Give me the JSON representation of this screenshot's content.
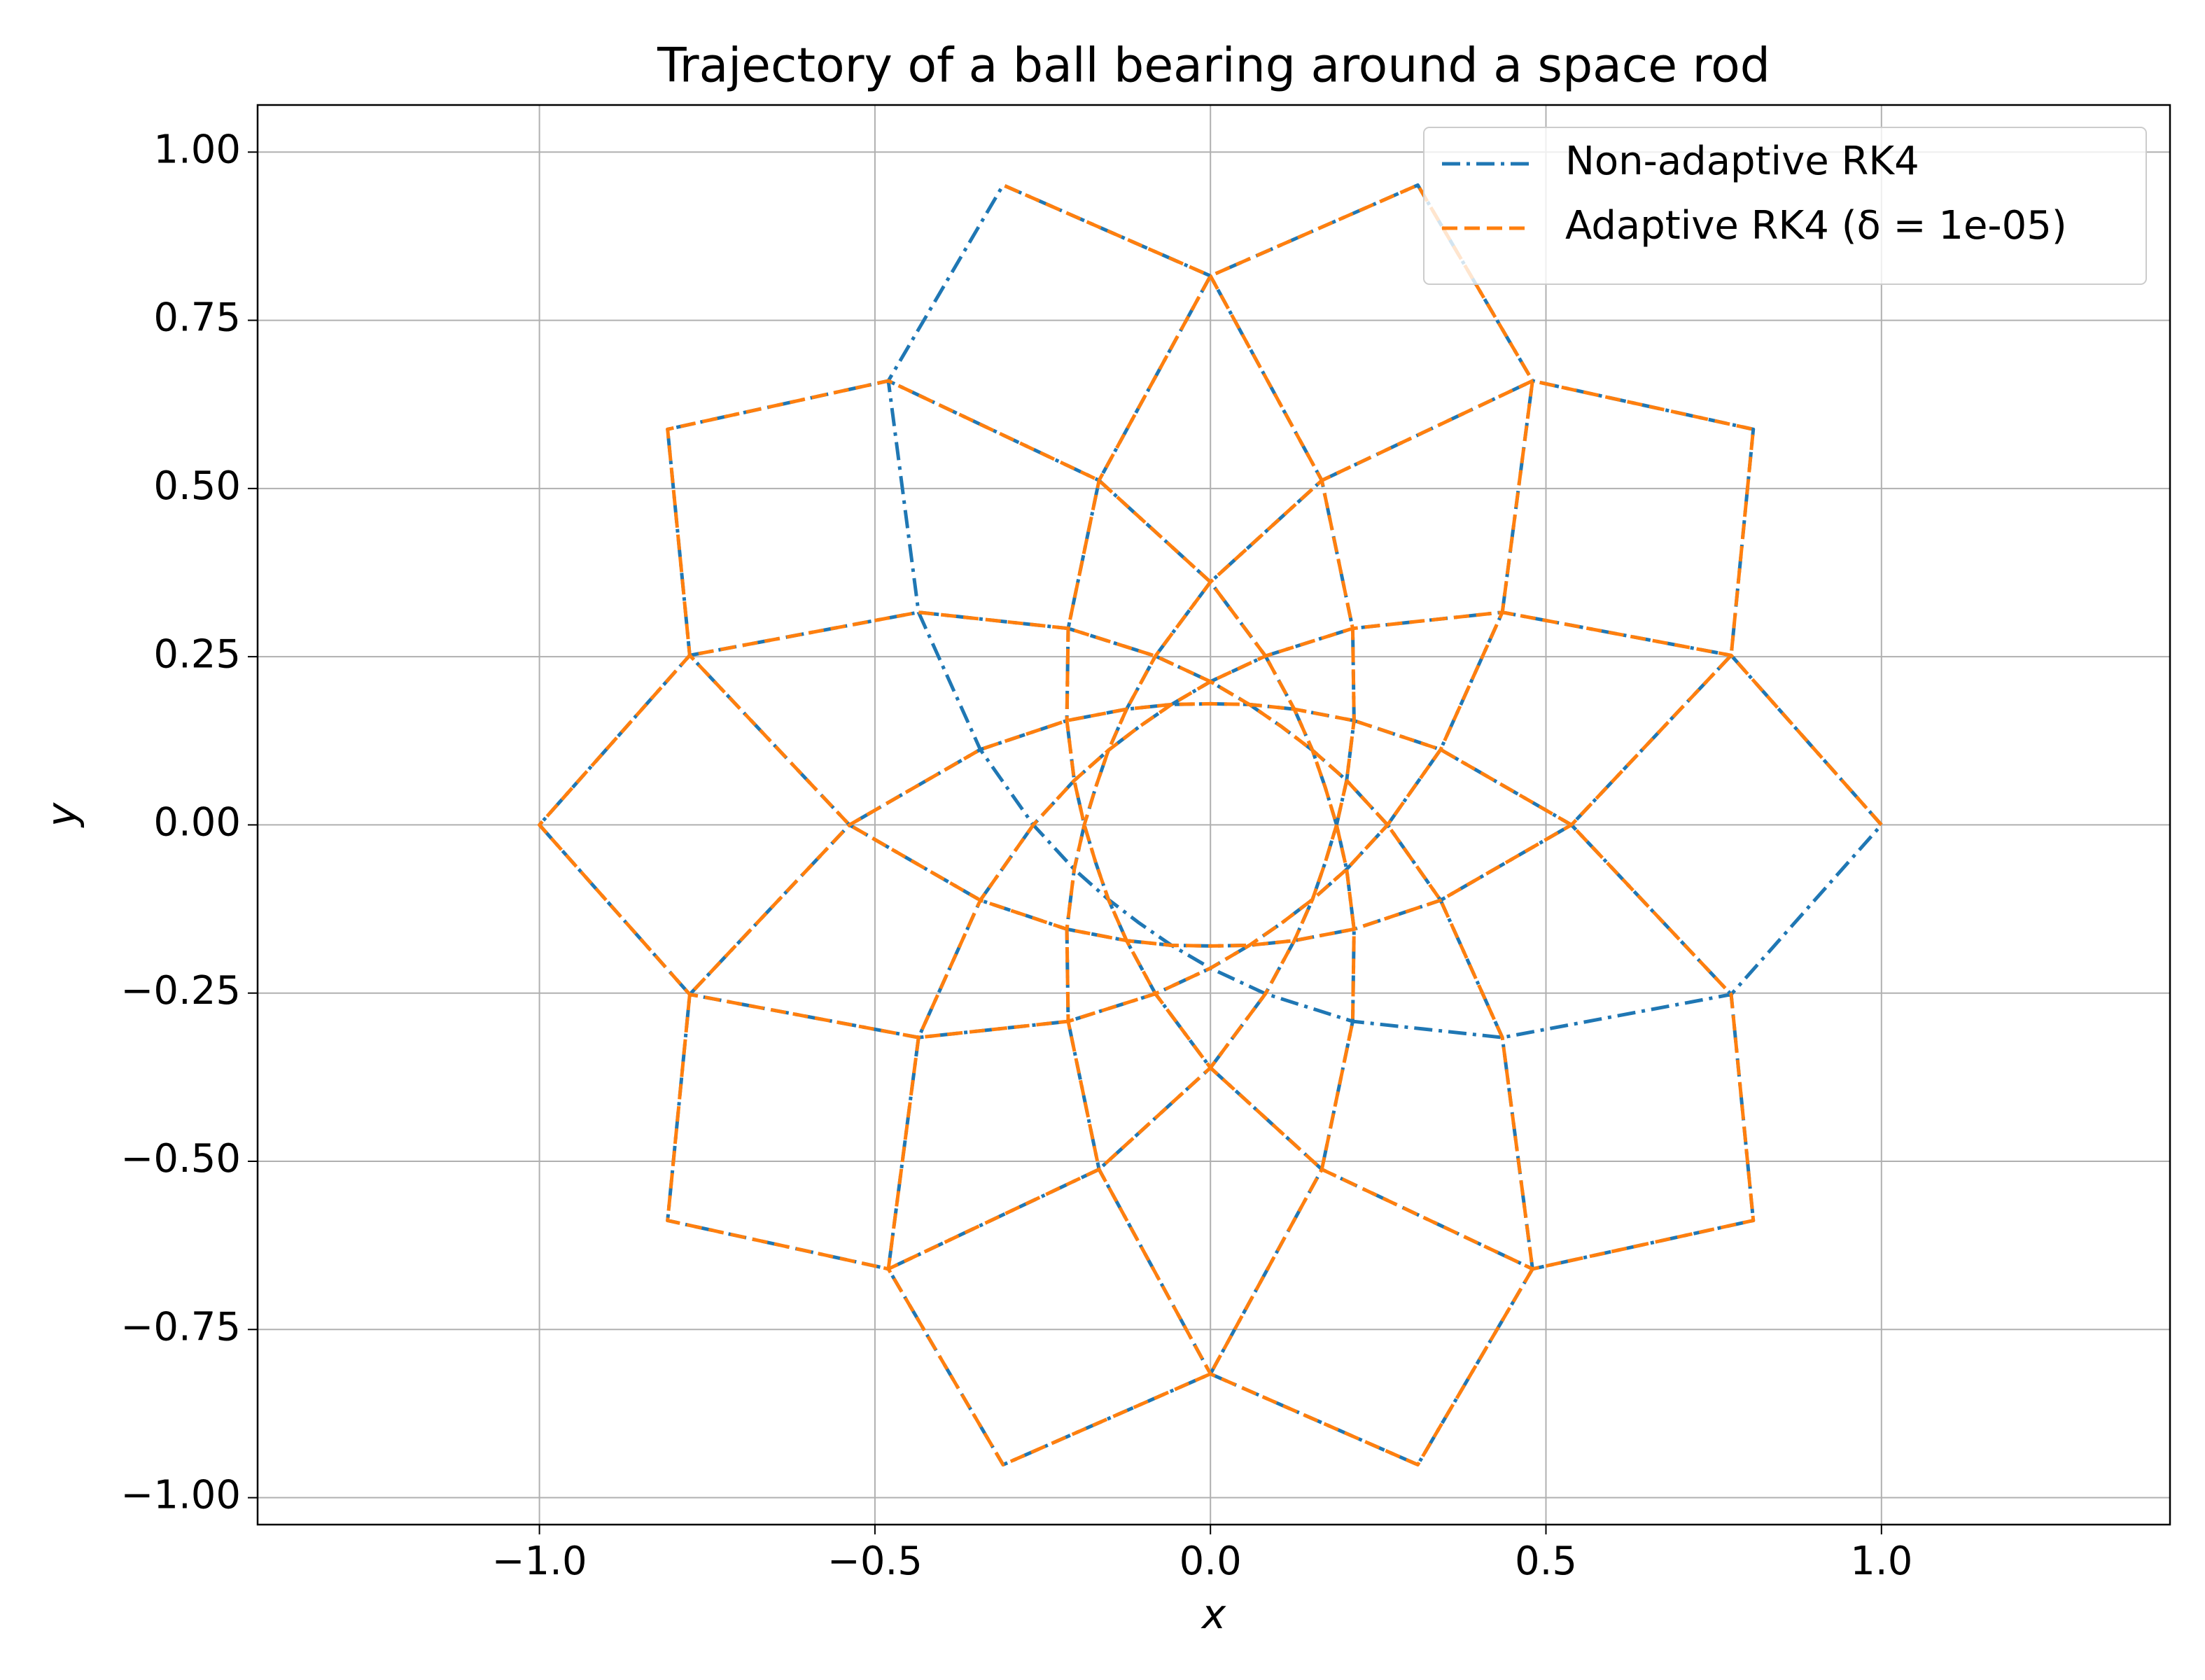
{
  "chart_data": {
    "type": "line",
    "title": "Trajectory of a ball bearing around a space rod",
    "xlabel": "x",
    "ylabel": "y",
    "xlim": [
      -1.42,
      1.43
    ],
    "ylim": [
      -1.04,
      1.07
    ],
    "xticks": [
      {
        "value": -1.0,
        "label": "−1.0"
      },
      {
        "value": -0.5,
        "label": "−0.5"
      },
      {
        "value": 0.0,
        "label": "0.0"
      },
      0.5,
      {
        "value": 1.0,
        "label": "1.0"
      }
    ],
    "yticks": [
      {
        "value": -1.0,
        "label": "−1.00"
      },
      {
        "value": -0.75,
        "label": "−0.75"
      },
      {
        "value": -0.5,
        "label": "−0.50"
      },
      {
        "value": -0.25,
        "label": "−0.25"
      },
      {
        "value": 0.0,
        "label": "0.00"
      },
      0.25,
      {
        "value": 0.5,
        "label": "0.50"
      },
      0.75,
      {
        "value": 1.0,
        "label": "1.00"
      }
    ],
    "grid": true,
    "legend_loc": "upper right",
    "series": [
      {
        "name": "Non-adaptive RK4",
        "color": "#1f77b4",
        "linestyle": "dashdot",
        "x": [
          1,
          0.776,
          0.435,
          0.212,
          0.082,
          0,
          -0.058,
          -0.106,
          -0.152,
          -0.203,
          -0.264,
          -0.343,
          -0.435,
          -0.48,
          -0.309,
          0,
          0.166,
          0.212,
          0.214,
          0.203,
          0.188,
          0.171,
          0.152,
          0.125,
          0.082,
          0,
          -0.166,
          -0.48,
          -0.809,
          -0.776,
          -0.538,
          -0.343,
          -0.214,
          -0.125,
          -0.058,
          0,
          0.058,
          0.125,
          0.214,
          0.343,
          0.538,
          0.776,
          0.809,
          0.48,
          0.166,
          0,
          -0.082,
          -0.125,
          -0.152,
          -0.171,
          -0.188,
          -0.203,
          -0.214,
          -0.212,
          -0.166,
          0,
          0.309,
          0.48,
          0.435,
          0.343,
          0.264,
          0.203,
          0.152,
          0.106,
          0.058,
          0,
          -0.082,
          -0.212,
          -0.435,
          -0.776,
          -1,
          -0.776,
          -0.435,
          -0.212,
          -0.082,
          0,
          0.058,
          0.106,
          0.152,
          0.203,
          0.264,
          0.343,
          0.435,
          0.48,
          0.309,
          0,
          -0.166,
          -0.212,
          -0.214,
          -0.203,
          -0.188,
          -0.171,
          -0.152,
          -0.125,
          -0.082,
          0,
          0.166,
          0.48,
          0.809,
          0.776,
          0.538,
          0.343,
          0.214,
          0.125,
          0.058,
          0,
          -0.058,
          -0.125,
          -0.214,
          -0.343,
          -0.538,
          -0.776,
          -0.809,
          -0.48,
          -0.166,
          0,
          0.082,
          0.125,
          0.152,
          0.171,
          0.188,
          0.203,
          0.214,
          0.212,
          0.166,
          0,
          -0.309,
          -0.48,
          -0.435,
          -0.343,
          -0.264,
          -0.203,
          -0.152,
          -0.106,
          -0.058,
          0,
          0.082,
          0.212,
          0.435,
          0.776,
          1
        ],
        "values": [
          0,
          0.252,
          0.316,
          0.292,
          0.251,
          0.213,
          0.179,
          0.146,
          0.111,
          0.066,
          0,
          -0.112,
          -0.316,
          -0.66,
          -0.951,
          -0.816,
          -0.512,
          -0.292,
          -0.155,
          -0.066,
          0,
          0.056,
          0.111,
          0.172,
          0.251,
          0.361,
          0.512,
          0.66,
          0.588,
          0.252,
          0,
          -0.112,
          -0.155,
          -0.172,
          -0.179,
          -0.18,
          -0.179,
          -0.172,
          -0.155,
          -0.112,
          0,
          0.252,
          0.588,
          0.66,
          0.512,
          0.361,
          0.251,
          0.172,
          0.111,
          0.056,
          0,
          -0.066,
          -0.155,
          -0.292,
          -0.512,
          -0.816,
          -0.951,
          -0.66,
          -0.316,
          -0.112,
          0,
          0.066,
          0.111,
          0.146,
          0.179,
          0.213,
          0.251,
          0.292,
          0.316,
          0.252,
          0,
          -0.252,
          -0.316,
          -0.292,
          -0.251,
          -0.213,
          -0.179,
          -0.146,
          -0.111,
          -0.066,
          0,
          0.112,
          0.316,
          0.66,
          0.951,
          0.816,
          0.512,
          0.292,
          0.155,
          0.066,
          0,
          -0.056,
          -0.111,
          -0.172,
          -0.251,
          -0.361,
          -0.512,
          -0.66,
          -0.588,
          -0.252,
          0,
          0.112,
          0.155,
          0.172,
          0.179,
          0.18,
          0.179,
          0.172,
          0.155,
          0.112,
          0,
          -0.252,
          -0.588,
          -0.66,
          -0.512,
          -0.361,
          -0.251,
          -0.172,
          -0.111,
          -0.056,
          0,
          0.066,
          0.155,
          0.292,
          0.512,
          0.816,
          0.951,
          0.66,
          0.316,
          0.112,
          0,
          -0.066,
          -0.111,
          -0.146,
          -0.179,
          -0.213,
          -0.251,
          -0.292,
          -0.316,
          -0.252,
          0
        ]
      },
      {
        "name": "Adaptive RK4 (δ =  1e-05)",
        "color": "#ff7f0e",
        "linestyle": "dashed",
        "x": [
          1,
          0.776,
          0.435,
          0.212,
          0.082,
          0,
          -0.058,
          -0.106,
          -0.152,
          -0.203,
          -0.264,
          -0.343,
          -0.435,
          -0.48,
          -0.309,
          0,
          0.166,
          0.212,
          0.214,
          0.203,
          0.188,
          0.171,
          0.152,
          0.125,
          0.082,
          0,
          -0.166,
          -0.48,
          -0.809,
          -0.776,
          -0.538,
          -0.343,
          -0.214,
          -0.125,
          -0.058,
          0,
          0.058,
          0.125,
          0.214,
          0.343,
          0.538,
          0.776,
          0.809,
          0.48,
          0.166,
          0,
          -0.082,
          -0.125,
          -0.152,
          -0.171,
          -0.188,
          -0.203,
          -0.214,
          -0.212,
          -0.166,
          0,
          0.309,
          0.48,
          0.435,
          0.343,
          0.264,
          0.203,
          0.152,
          0.106,
          0.058,
          0,
          -0.082,
          -0.212,
          -0.435,
          -0.776,
          -1,
          -0.776,
          -0.435,
          -0.212,
          -0.082,
          0,
          0.058,
          0.106,
          0.152,
          0.203,
          0.264,
          0.343,
          0.435,
          0.48,
          0.309,
          0,
          -0.166,
          -0.212,
          -0.214,
          -0.203,
          -0.188,
          -0.171,
          -0.152,
          -0.125,
          -0.082,
          0,
          0.166,
          0.48,
          0.809,
          0.776,
          0.538,
          0.343,
          0.214,
          0.125,
          0.058,
          0,
          -0.058,
          -0.125,
          -0.214,
          -0.343,
          -0.538,
          -0.776,
          -0.809,
          -0.48,
          -0.166,
          0,
          0.082,
          0.125,
          0.152,
          0.171,
          0.188,
          0.203,
          0.214,
          0.212,
          0.166,
          0,
          -0.309
        ],
        "values": [
          0,
          0.252,
          0.316,
          0.292,
          0.251,
          0.213,
          0.179,
          0.146,
          0.111,
          0.066,
          0,
          -0.112,
          -0.316,
          -0.66,
          -0.951,
          -0.816,
          -0.512,
          -0.292,
          -0.155,
          -0.066,
          0,
          0.056,
          0.111,
          0.172,
          0.251,
          0.361,
          0.512,
          0.66,
          0.588,
          0.252,
          0,
          -0.112,
          -0.155,
          -0.172,
          -0.179,
          -0.18,
          -0.179,
          -0.172,
          -0.155,
          -0.112,
          0,
          0.252,
          0.588,
          0.66,
          0.512,
          0.361,
          0.251,
          0.172,
          0.111,
          0.056,
          0,
          -0.066,
          -0.155,
          -0.292,
          -0.512,
          -0.816,
          -0.951,
          -0.66,
          -0.316,
          -0.112,
          0,
          0.066,
          0.111,
          0.146,
          0.179,
          0.213,
          0.251,
          0.292,
          0.316,
          0.252,
          0,
          -0.252,
          -0.316,
          -0.292,
          -0.251,
          -0.213,
          -0.179,
          -0.146,
          -0.111,
          -0.066,
          0,
          0.112,
          0.316,
          0.66,
          0.951,
          0.816,
          0.512,
          0.292,
          0.155,
          0.066,
          0,
          -0.056,
          -0.111,
          -0.172,
          -0.251,
          -0.361,
          -0.512,
          -0.66,
          -0.588,
          -0.252,
          0,
          0.112,
          0.155,
          0.172,
          0.179,
          0.18,
          0.179,
          0.172,
          0.155,
          0.112,
          0,
          -0.252,
          -0.588,
          -0.66,
          -0.512,
          -0.361,
          -0.251,
          -0.172,
          -0.111,
          -0.056,
          0,
          0.066,
          0.155,
          0.292,
          0.512,
          0.816,
          0.951
        ]
      }
    ]
  }
}
